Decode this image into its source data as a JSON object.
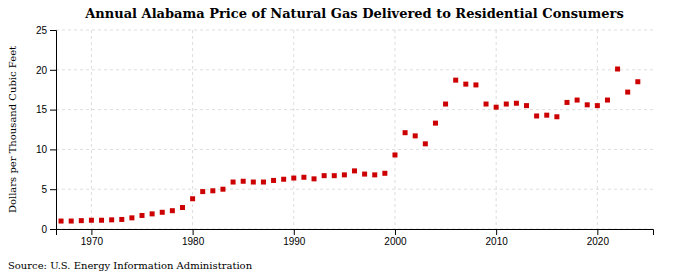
{
  "chart_data": {
    "type": "scatter",
    "title": "Annual Alabama Price of Natural Gas Delivered to Residential Consumers",
    "ylabel": "Dollars per Thousand Cubic Feet",
    "annotations": [
      "Source: U.S. Energy Information Administration"
    ],
    "color": "#CC0000",
    "marker": "square",
    "grid": true,
    "ylim": [
      0,
      25
    ],
    "yticks": [
      0,
      5,
      10,
      15,
      20,
      25
    ],
    "xlim": [
      1966.5,
      2025.5
    ],
    "xticks": [
      1970,
      1980,
      1990,
      2000,
      2010,
      2020
    ],
    "x": [
      1967,
      1968,
      1969,
      1970,
      1971,
      1972,
      1973,
      1974,
      1975,
      1976,
      1977,
      1978,
      1979,
      1980,
      1981,
      1982,
      1983,
      1984,
      1985,
      1986,
      1987,
      1988,
      1989,
      1990,
      1991,
      1992,
      1993,
      1994,
      1995,
      1996,
      1997,
      1998,
      1999,
      2000,
      2001,
      2002,
      2003,
      2004,
      2005,
      2006,
      2007,
      2008,
      2009,
      2010,
      2011,
      2012,
      2013,
      2014,
      2015,
      2016,
      2017,
      2018,
      2019,
      2020,
      2021,
      2022,
      2023,
      2024
    ],
    "values": [
      1.0,
      1.0,
      1.05,
      1.1,
      1.1,
      1.15,
      1.2,
      1.4,
      1.7,
      1.9,
      2.1,
      2.3,
      2.7,
      3.8,
      4.7,
      4.8,
      5.0,
      5.9,
      6.0,
      5.9,
      5.9,
      6.1,
      6.25,
      6.4,
      6.5,
      6.3,
      6.7,
      6.7,
      6.8,
      7.3,
      6.9,
      6.8,
      7.0,
      9.3,
      12.1,
      11.7,
      10.7,
      13.3,
      15.7,
      18.7,
      18.2,
      18.1,
      15.7,
      15.3,
      15.7,
      15.8,
      15.5,
      14.2,
      14.3,
      14.1,
      15.9,
      16.2,
      15.6,
      15.5,
      16.2,
      20.1,
      17.2,
      18.5
    ]
  }
}
